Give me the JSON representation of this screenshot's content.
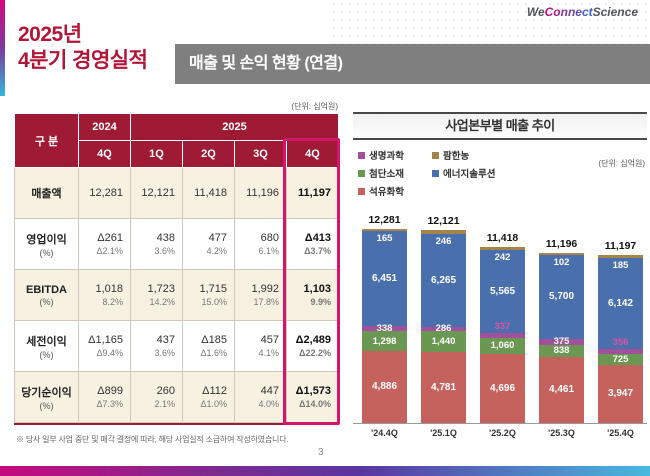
{
  "header": {
    "title_line1": "2025년",
    "title_line2": "4분기 경영실적",
    "banner": "매출 및 손익 현황 (연결)",
    "logo_we": "We",
    "logo_connect": "Connect",
    "logo_science": "Science"
  },
  "table": {
    "unit": "(단위: 십억원)",
    "col_group_label": "구 분",
    "year_left": "2024",
    "year_right": "2025",
    "quarters": [
      "4Q",
      "1Q",
      "2Q",
      "3Q",
      "4Q"
    ],
    "rows": [
      {
        "label": "매출액",
        "sub": "",
        "values": [
          "12,281",
          "12,121",
          "11,418",
          "11,196",
          "11,197"
        ],
        "pcts": [
          "",
          "",
          "",
          "",
          ""
        ]
      },
      {
        "label": "영업이익",
        "sub": "(%)",
        "values": [
          "Δ261",
          "438",
          "477",
          "680",
          "Δ413"
        ],
        "pcts": [
          "Δ2.1%",
          "3.6%",
          "4.2%",
          "6.1%",
          "Δ3.7%"
        ]
      },
      {
        "label": "EBITDA",
        "sub": "(%)",
        "values": [
          "1,018",
          "1,723",
          "1,715",
          "1,992",
          "1,103"
        ],
        "pcts": [
          "8.2%",
          "14.2%",
          "15.0%",
          "17.8%",
          "9.9%"
        ]
      },
      {
        "label": "세전이익",
        "sub": "(%)",
        "values": [
          "Δ1,165",
          "437",
          "Δ185",
          "457",
          "Δ2,489"
        ],
        "pcts": [
          "Δ9.4%",
          "3.6%",
          "Δ1.6%",
          "4.1%",
          "Δ22.2%"
        ]
      },
      {
        "label": "당기순이익",
        "sub": "(%)",
        "values": [
          "Δ899",
          "260",
          "Δ112",
          "447",
          "Δ1,573"
        ],
        "pcts": [
          "Δ7.3%",
          "2.1%",
          "Δ1.0%",
          "4.0%",
          "Δ14.0%"
        ]
      }
    ],
    "footnote": "※ 당사 일부 사업 중단 및 매각 결정에 따라, 해당 사업실적 소급하여 작성하였습니다."
  },
  "chart_data": {
    "type": "bar",
    "stacked": true,
    "title": "사업본부별 매출 추이",
    "unit": "(단위: 십억원)",
    "categories": [
      "'24.4Q",
      "'25.1Q",
      "'25.2Q",
      "'25.3Q",
      "'25.4Q"
    ],
    "totals": [
      12281,
      12121,
      11418,
      11196,
      11197
    ],
    "series": [
      {
        "name": "석유화학",
        "color": "#c5625d",
        "values": [
          4886,
          4781,
          4696,
          4461,
          3947
        ]
      },
      {
        "name": "첨단소재",
        "color": "#6a9852",
        "values": [
          1298,
          1440,
          1060,
          838,
          725
        ]
      },
      {
        "name": "생명과학",
        "color": "#a1519c",
        "values": [
          338,
          286,
          337,
          375,
          356
        ]
      },
      {
        "name": "에너지솔루션",
        "color": "#4a6fad",
        "values": [
          6451,
          6265,
          5565,
          5700,
          6142
        ]
      },
      {
        "name": "팜한농",
        "color": "#a3854c",
        "values": [
          165,
          246,
          242,
          102,
          185
        ]
      }
    ],
    "legend_order": [
      "생명과학",
      "팜한농",
      "첨단소재",
      "에너지솔루션",
      "석유화학"
    ],
    "purple_label_outside": [
      false,
      false,
      true,
      false,
      true
    ],
    "ylim": [
      0,
      13200
    ],
    "grid": false,
    "legend_position": "top-left"
  },
  "footer": {
    "page_number": "3"
  }
}
